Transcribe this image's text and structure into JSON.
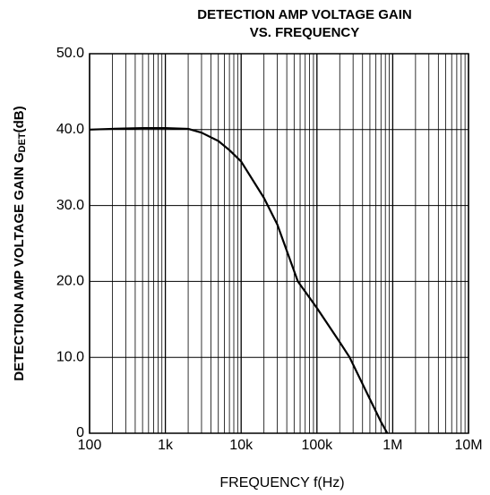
{
  "chart_data": {
    "type": "line",
    "title": "DETECTION AMP VOLTAGE GAIN",
    "subtitle": "VS. FREQUENCY",
    "ylabel": "DETECTION  AMP VOLTAGE GAIN G",
    "ylabel_subscript": "DET",
    "ylabel_unit": "(dB)",
    "xlabel": "FREQUENCY  f(Hz)",
    "x": [
      100,
      200,
      500,
      1000,
      2000,
      3000,
      5000,
      7000,
      10000,
      20000,
      30000,
      56000,
      100000,
      200000,
      270000,
      500000,
      700000,
      850000
    ],
    "values": [
      40.0,
      40.1,
      40.2,
      40.2,
      40.1,
      39.6,
      38.5,
      37.3,
      35.8,
      31.0,
      27.5,
      20.0,
      16.5,
      12.0,
      10.0,
      4.5,
      1.5,
      0
    ],
    "color": "#000000",
    "xscale": "log",
    "xlim": [
      100,
      10000000
    ],
    "xticks": [
      100,
      {
        "value": 1000,
        "label": "1k"
      },
      {
        "value": 10000,
        "label": "10k"
      },
      {
        "value": 100000,
        "label": "100k"
      },
      {
        "value": 1000000,
        "label": "1M"
      },
      {
        "value": 10000000,
        "label": "10M"
      }
    ],
    "ylim": [
      0,
      50
    ],
    "yticks": [
      0,
      {
        "value": 10,
        "label": "10.0"
      },
      {
        "value": 20,
        "label": "20.0"
      },
      {
        "value": 30,
        "label": "30.0"
      },
      {
        "value": 40,
        "label": "40.0"
      },
      {
        "value": 50,
        "label": "50.0"
      }
    ],
    "grid": true
  }
}
